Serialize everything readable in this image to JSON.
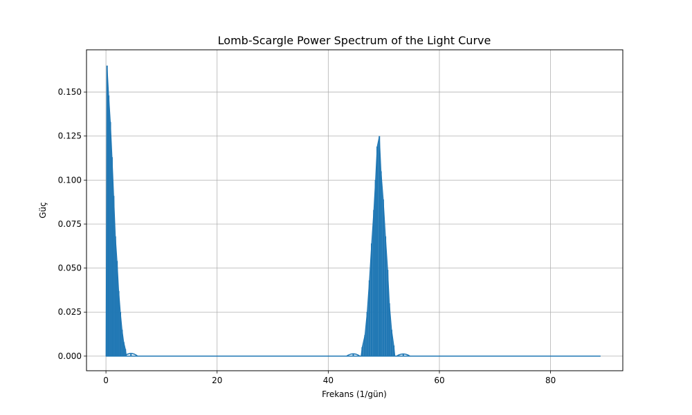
{
  "chart_data": {
    "type": "line",
    "title": "Lomb-Scargle Power Spectrum of the Light Curve",
    "xlabel": "Frekans (1/gün)",
    "ylabel": "Güç",
    "xlim": [
      -3.5,
      93
    ],
    "ylim": [
      -0.0083,
      0.174
    ],
    "xticks": [
      0,
      20,
      40,
      60,
      80
    ],
    "xtick_labels": [
      "0",
      "20",
      "40",
      "60",
      "80"
    ],
    "yticks": [
      0.0,
      0.025,
      0.05,
      0.075,
      0.1,
      0.125,
      0.15
    ],
    "ytick_labels": [
      "0.000",
      "0.025",
      "0.050",
      "0.075",
      "0.100",
      "0.125",
      "0.150"
    ],
    "grid": true,
    "color": "#1f77b4",
    "frequency_range": [
      0.0,
      89.0
    ],
    "peaks": [
      {
        "x": 0.2,
        "y": 0.165
      },
      {
        "x": 0.5,
        "y": 0.148
      },
      {
        "x": 0.8,
        "y": 0.133
      },
      {
        "x": 1.1,
        "y": 0.113
      },
      {
        "x": 1.4,
        "y": 0.091
      },
      {
        "x": 1.7,
        "y": 0.068
      },
      {
        "x": 2.0,
        "y": 0.054
      },
      {
        "x": 2.3,
        "y": 0.037
      },
      {
        "x": 2.6,
        "y": 0.025
      },
      {
        "x": 2.9,
        "y": 0.015
      },
      {
        "x": 3.2,
        "y": 0.008
      },
      {
        "x": 3.5,
        "y": 0.004
      },
      {
        "x": 4.5,
        "y": 0.0015
      },
      {
        "x": 44.5,
        "y": 0.0013
      },
      {
        "x": 46.1,
        "y": 0.005
      },
      {
        "x": 46.6,
        "y": 0.012
      },
      {
        "x": 47.0,
        "y": 0.025
      },
      {
        "x": 47.4,
        "y": 0.043
      },
      {
        "x": 47.8,
        "y": 0.064
      },
      {
        "x": 48.2,
        "y": 0.083
      },
      {
        "x": 48.5,
        "y": 0.1
      },
      {
        "x": 48.8,
        "y": 0.119
      },
      {
        "x": 49.2,
        "y": 0.125
      },
      {
        "x": 49.5,
        "y": 0.105
      },
      {
        "x": 49.9,
        "y": 0.089
      },
      {
        "x": 50.3,
        "y": 0.068
      },
      {
        "x": 50.7,
        "y": 0.049
      },
      {
        "x": 51.0,
        "y": 0.03
      },
      {
        "x": 51.4,
        "y": 0.015
      },
      {
        "x": 51.8,
        "y": 0.006
      },
      {
        "x": 53.5,
        "y": 0.0012
      }
    ]
  }
}
